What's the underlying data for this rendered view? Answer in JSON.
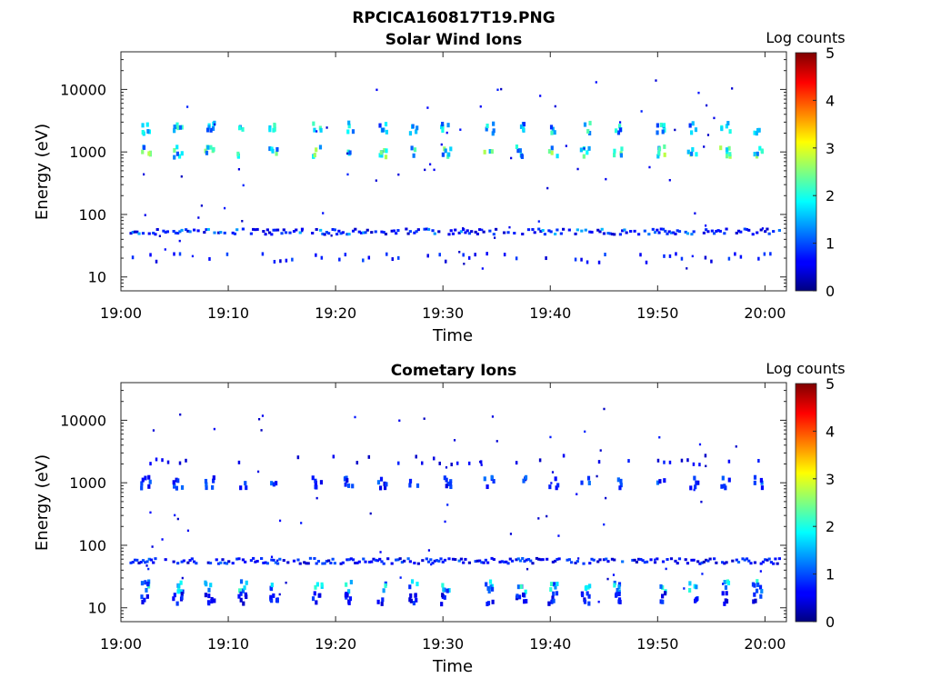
{
  "figure": {
    "title": "RPCICA160817T19.PNG"
  },
  "chart_data": [
    {
      "type": "heatmap",
      "title": "Solar Wind Ions",
      "xlabel": "Time",
      "ylabel": "Energy (eV)",
      "xlim": [
        "19:00",
        "20:02"
      ],
      "ylim": [
        6,
        40000
      ],
      "yscale": "log",
      "xticks": [
        "19:00",
        "19:10",
        "19:20",
        "19:30",
        "19:40",
        "19:50",
        "20:00"
      ],
      "yticks": [
        "10",
        "100",
        "1000",
        "10000"
      ],
      "colorbar": {
        "label": "Log counts",
        "range": [
          0,
          5
        ],
        "ticks": [
          "0",
          "1",
          "2",
          "3",
          "4",
          "5"
        ]
      },
      "grid": false,
      "bands": [
        {
          "energy_eV": 2400,
          "max_log_counts": 2.3,
          "pattern": "periodic"
        },
        {
          "energy_eV": 1000,
          "max_log_counts": 2.8,
          "pattern": "periodic"
        },
        {
          "energy_eV": 52,
          "max_log_counts": 1.6,
          "pattern": "continuous"
        },
        {
          "energy_eV": 20,
          "max_log_counts": 1.0,
          "pattern": "sparse"
        }
      ],
      "burst_times": [
        "19:02",
        "19:05",
        "19:08",
        "19:11",
        "19:14",
        "19:18",
        "19:21",
        "19:24",
        "19:27",
        "19:30",
        "19:34",
        "19:37",
        "19:40",
        "19:43",
        "19:46",
        "19:50",
        "19:53",
        "19:56",
        "19:59"
      ]
    },
    {
      "type": "heatmap",
      "title": "Cometary Ions",
      "xlabel": "Time",
      "ylabel": "Energy (eV)",
      "xlim": [
        "19:00",
        "20:02"
      ],
      "ylim": [
        6,
        40000
      ],
      "yscale": "log",
      "xticks": [
        "19:00",
        "19:10",
        "19:20",
        "19:30",
        "19:40",
        "19:50",
        "20:00"
      ],
      "yticks": [
        "10",
        "100",
        "1000",
        "10000"
      ],
      "colorbar": {
        "label": "Log counts",
        "range": [
          0,
          5
        ],
        "ticks": [
          "0",
          "1",
          "2",
          "3",
          "4",
          "5"
        ]
      },
      "grid": false,
      "bands": [
        {
          "energy_eV": 2300,
          "max_log_counts": 0.8,
          "pattern": "sparse"
        },
        {
          "energy_eV": 1000,
          "max_log_counts": 1.2,
          "pattern": "periodic"
        },
        {
          "energy_eV": 55,
          "max_log_counts": 1.2,
          "pattern": "continuous"
        },
        {
          "energy_eV": 22,
          "max_log_counts": 2.2,
          "pattern": "periodic"
        },
        {
          "energy_eV": 14,
          "max_log_counts": 1.0,
          "pattern": "periodic"
        }
      ],
      "burst_times": [
        "19:02",
        "19:05",
        "19:08",
        "19:11",
        "19:14",
        "19:18",
        "19:21",
        "19:24",
        "19:27",
        "19:30",
        "19:34",
        "19:37",
        "19:40",
        "19:43",
        "19:46",
        "19:50",
        "19:53",
        "19:56",
        "19:59"
      ]
    }
  ]
}
